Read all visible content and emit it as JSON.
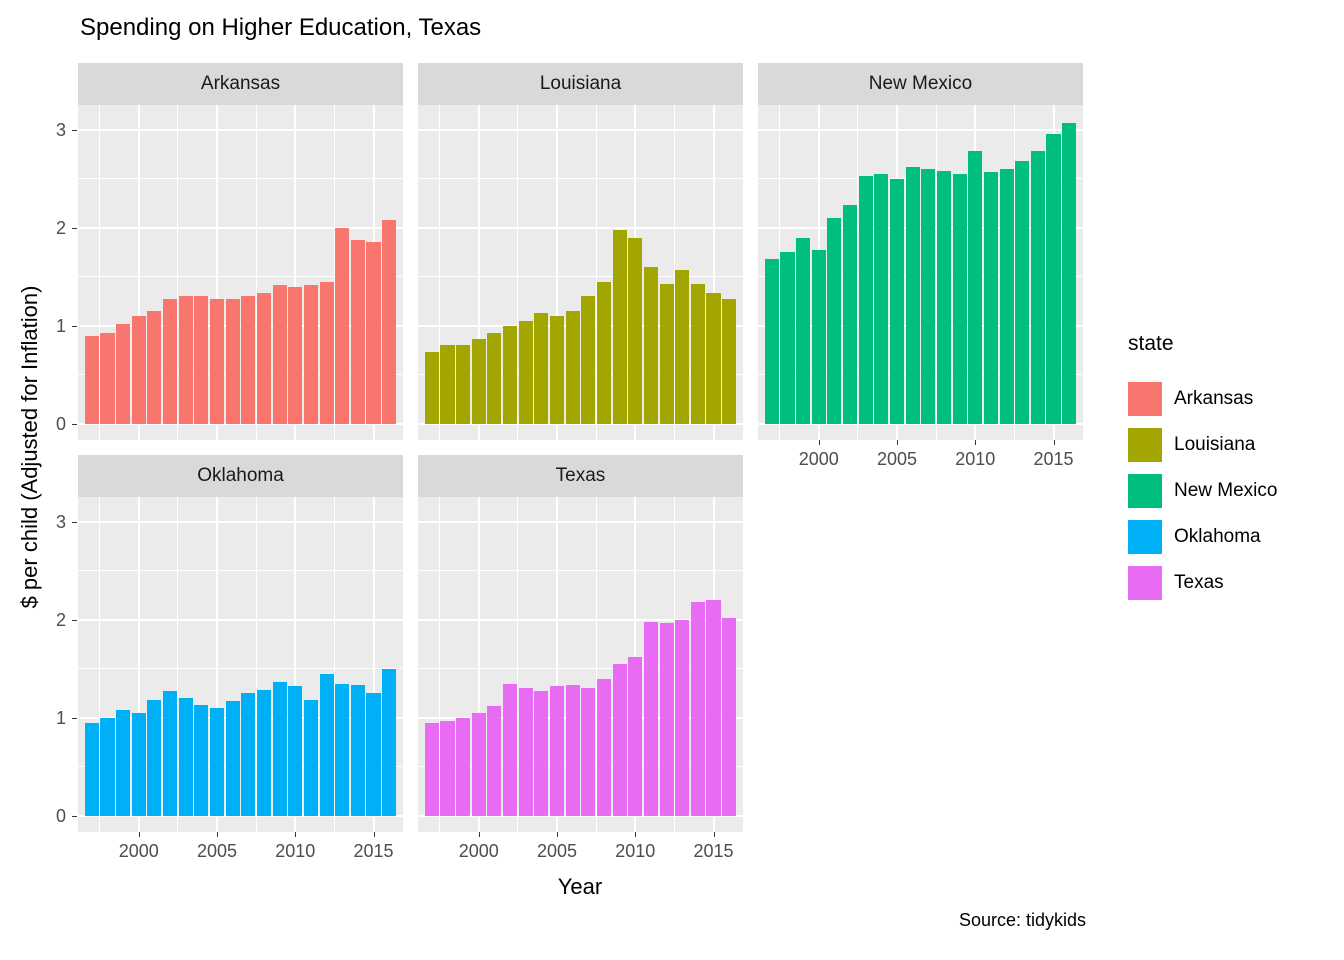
{
  "title": "Spending on Higher Education, Texas",
  "x_axis_title": "Year",
  "y_axis_title": "$ per child (Adjusted for Inflation)",
  "source": "Source: tidykids",
  "legend": {
    "title": "state",
    "items": [
      {
        "label": "Arkansas",
        "color": "#F8766D"
      },
      {
        "label": "Louisiana",
        "color": "#A3A500"
      },
      {
        "label": "New Mexico",
        "color": "#00BF7D"
      },
      {
        "label": "Oklahoma",
        "color": "#00B0F6"
      },
      {
        "label": "Texas",
        "color": "#E76BF3"
      }
    ]
  },
  "theme": {
    "panel_bg": "#EBEBEB",
    "strip_bg": "#D9D9D9",
    "grid_color": "#FFFFFF",
    "axis_text_color": "#4D4D4D"
  },
  "chart_data": {
    "type": "bar",
    "title": "Spending on Higher Education, Texas",
    "xlabel": "Year",
    "ylabel": "$ per child (Adjusted for Inflation)",
    "grid": true,
    "legend_position": "right",
    "x": [
      1997,
      1998,
      1999,
      2000,
      2001,
      2002,
      2003,
      2004,
      2005,
      2006,
      2007,
      2008,
      2009,
      2010,
      2011,
      2012,
      2013,
      2014,
      2015,
      2016
    ],
    "x_ticks": [
      2000,
      2005,
      2010,
      2015
    ],
    "y_ticks": [
      0,
      1,
      2,
      3
    ],
    "y_minor_ticks": [
      0.5,
      1.5,
      2.5
    ],
    "ylim": [
      0,
      3.25
    ],
    "facets": [
      {
        "name": "Arkansas",
        "row": 0,
        "col": 0,
        "show_x_axis": false,
        "show_y_axis": true
      },
      {
        "name": "Louisiana",
        "row": 0,
        "col": 1,
        "show_x_axis": false,
        "show_y_axis": false
      },
      {
        "name": "New Mexico",
        "row": 0,
        "col": 2,
        "show_x_axis": true,
        "show_y_axis": false
      },
      {
        "name": "Oklahoma",
        "row": 1,
        "col": 0,
        "show_x_axis": true,
        "show_y_axis": true
      },
      {
        "name": "Texas",
        "row": 1,
        "col": 1,
        "show_x_axis": true,
        "show_y_axis": false
      }
    ],
    "series": [
      {
        "name": "Arkansas",
        "color": "#F8766D",
        "values": [
          0.9,
          0.93,
          1.02,
          1.1,
          1.15,
          1.27,
          1.3,
          1.3,
          1.27,
          1.27,
          1.3,
          1.33,
          1.42,
          1.4,
          1.42,
          1.45,
          2.0,
          1.87,
          1.85,
          2.08
        ]
      },
      {
        "name": "Louisiana",
        "color": "#A3A500",
        "values": [
          0.73,
          0.8,
          0.8,
          0.87,
          0.93,
          1.0,
          1.05,
          1.13,
          1.1,
          1.15,
          1.3,
          1.45,
          1.98,
          1.9,
          1.6,
          1.43,
          1.57,
          1.43,
          1.33,
          1.27
        ]
      },
      {
        "name": "New Mexico",
        "color": "#00BF7D",
        "values": [
          1.68,
          1.75,
          1.9,
          1.77,
          2.1,
          2.23,
          2.53,
          2.55,
          2.5,
          2.62,
          2.6,
          2.58,
          2.55,
          2.78,
          2.57,
          2.6,
          2.68,
          2.78,
          2.95,
          3.07
        ]
      },
      {
        "name": "Oklahoma",
        "color": "#00B0F6",
        "values": [
          0.95,
          1.0,
          1.08,
          1.05,
          1.18,
          1.27,
          1.2,
          1.13,
          1.1,
          1.17,
          1.25,
          1.28,
          1.37,
          1.32,
          1.18,
          1.45,
          1.35,
          1.33,
          1.25,
          1.5
        ]
      },
      {
        "name": "Texas",
        "color": "#E76BF3",
        "values": [
          0.95,
          0.97,
          1.0,
          1.05,
          1.12,
          1.35,
          1.3,
          1.27,
          1.32,
          1.33,
          1.3,
          1.4,
          1.55,
          1.62,
          1.98,
          1.97,
          2.0,
          2.18,
          2.2,
          2.02
        ]
      }
    ]
  }
}
